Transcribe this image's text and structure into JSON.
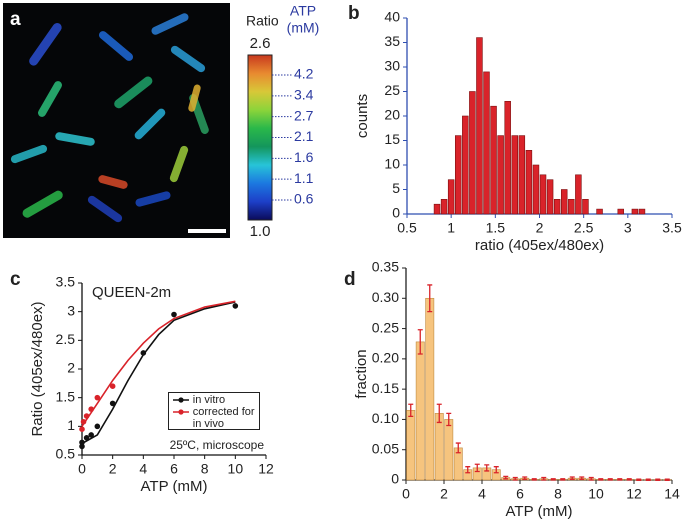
{
  "chart_data": [
    {
      "type": "image",
      "panel": "a",
      "colorbar": {
        "title": "Ratio",
        "lim": [
          1,
          2.6
        ],
        "ticks": [
          2.6,
          {
            "value": 1,
            "label": "1.0"
          }
        ],
        "colormap": [
          "#0b0b5a",
          "#1d3fc8",
          "#1c78e0",
          "#27c4d8",
          "#14965c",
          "#2ab84a",
          "#8cd43a",
          "#d8c838",
          "#e88a30",
          "#c8381e"
        ]
      },
      "atp": {
        "title": [
          "ATP",
          "(mM)"
        ],
        "ticks": [
          4.2,
          3.4,
          2.7,
          2.1,
          1.6,
          1.1,
          0.6
        ],
        "color": "#2b3aa0"
      }
    },
    {
      "type": "histogram",
      "panel": "b",
      "xlabel": "ratio (405ex/480ex)",
      "ylabel": "counts",
      "bins": [
        0.8,
        0.88,
        0.96,
        1.04,
        1.12,
        1.2,
        1.28,
        1.36,
        1.44,
        1.52,
        1.6,
        1.68,
        1.76,
        1.84,
        1.92,
        2,
        2.08,
        2.16,
        2.24,
        2.32,
        2.4,
        2.48,
        2.56,
        2.64,
        2.72,
        2.8,
        2.88,
        2.96,
        3.04,
        3.12,
        3.2
      ],
      "values": [
        2,
        3,
        7,
        16,
        20,
        25,
        36,
        29,
        22,
        16,
        23,
        16,
        16,
        13,
        10,
        8,
        7,
        3,
        5,
        3,
        8,
        3,
        0,
        1,
        0,
        0,
        1,
        0,
        1,
        1
      ],
      "color": "#d9232a",
      "edge": "#7a1010",
      "axis_color": "#2f4fb0",
      "xlim": [
        0.5,
        3.5
      ],
      "xticks": [
        0.5,
        1,
        1.5,
        2,
        2.5,
        3,
        3.5
      ],
      "ylim": [
        0,
        40
      ],
      "yticks": [
        0,
        5,
        10,
        15,
        20,
        25,
        30,
        35,
        40
      ]
    },
    {
      "type": "scatter",
      "panel": "c",
      "title": "QUEEN-2m",
      "annotation": "25ºC, microscope",
      "xlabel": "ATP (mM)",
      "ylabel": "Ratio (405ex/480ex)",
      "xlim": [
        0,
        12
      ],
      "xticks": [
        0,
        2,
        4,
        6,
        8,
        10,
        12
      ],
      "ylim": [
        0.5,
        3.5
      ],
      "yticks": [
        0.5,
        1,
        1.5,
        2,
        2.5,
        3,
        3.5
      ],
      "series": [
        {
          "name": "in vitro",
          "color": "#111111",
          "x": [
            0,
            0,
            0.3,
            0.6,
            1,
            2,
            4,
            6,
            10
          ],
          "values": [
            0.65,
            0.72,
            0.8,
            0.85,
            1.0,
            1.4,
            2.28,
            2.95,
            3.1
          ],
          "fit": {
            "x": [
              0,
              1,
              2,
              3,
              4,
              5,
              6,
              8,
              10
            ],
            "y": [
              0.7,
              0.85,
              1.3,
              1.8,
              2.25,
              2.6,
              2.85,
              3.05,
              3.17
            ]
          }
        },
        {
          "name": "corrected for in vivo",
          "color": "#d9232a",
          "x": [
            0,
            0.1,
            0.3,
            0.6,
            1,
            2
          ],
          "values": [
            0.95,
            1.08,
            1.18,
            1.3,
            1.5,
            1.7
          ],
          "fit": {
            "x": [
              0,
              1,
              2,
              3,
              4,
              5,
              6,
              8,
              10
            ],
            "y": [
              1.0,
              1.4,
              1.8,
              2.15,
              2.45,
              2.7,
              2.88,
              3.08,
              3.18
            ]
          }
        }
      ]
    },
    {
      "type": "histogram",
      "panel": "d",
      "xlabel": "ATP (mM)",
      "ylabel": "fraction",
      "bins": [
        0,
        0.5,
        1,
        1.5,
        2,
        2.5,
        3,
        3.5,
        4,
        4.5,
        5,
        5.5,
        6,
        6.5,
        7,
        7.5,
        8,
        8.5,
        9,
        9.5,
        10,
        10.5,
        11,
        11.5,
        12,
        12.5,
        13,
        13.5,
        14
      ],
      "values": [
        0.115,
        0.228,
        0.3,
        0.11,
        0.1,
        0.053,
        0.017,
        0.02,
        0.02,
        0.017,
        0.004,
        0.002,
        0.003,
        0.001,
        0.002,
        0.001,
        0.001,
        0.003,
        0.003,
        0.002,
        0.001,
        0.001,
        0.001,
        0.001,
        0.0005,
        0.0005,
        0.0005,
        0.0005
      ],
      "errors": [
        0.01,
        0.02,
        0.022,
        0.015,
        0.01,
        0.008,
        0.005,
        0.006,
        0.005,
        0.005,
        0.002,
        0.002,
        0.002,
        0.001,
        0.002,
        0.001,
        0.001,
        0.002,
        0.002,
        0.002,
        0.001,
        0.001,
        0.001,
        0.001,
        0.001,
        0.001,
        0.001,
        0.001
      ],
      "color": "#f6c47e",
      "edge": "#c08a40",
      "error_color": "#d9232a",
      "axis_color": "#222222",
      "xlim": [
        0,
        14
      ],
      "xticks": [
        0,
        2,
        4,
        6,
        8,
        10,
        12,
        14
      ],
      "ylim": [
        0,
        0.35
      ],
      "yticks": [
        0,
        0.05,
        {
          "value": 0.1,
          "label": "0.10"
        },
        0.15,
        {
          "value": 0.2,
          "label": "0.20"
        },
        0.25,
        {
          "value": 0.3,
          "label": "0.30"
        },
        0.35
      ]
    }
  ]
}
